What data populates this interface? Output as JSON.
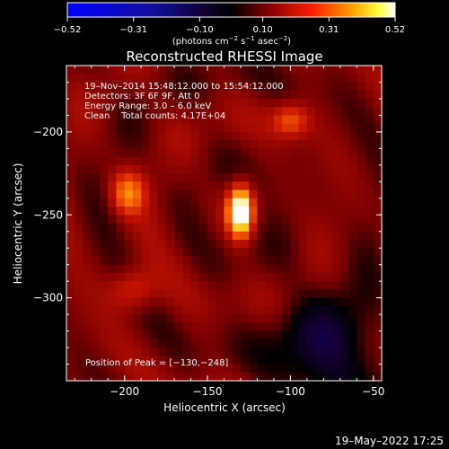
{
  "colorbar": {
    "tick_labels": [
      "−0.52",
      "−0.31",
      "−0.10",
      "0.10",
      "0.31",
      "0.52"
    ],
    "ticks": [
      -0.52,
      -0.31,
      -0.1,
      0.1,
      0.31,
      0.52
    ],
    "range": [
      -0.52,
      0.52
    ],
    "units_base": "(photons cm",
    "units_sup1": "−2",
    "units_mid": " s",
    "units_sup2": "−1",
    "units_mid2": " asec",
    "units_sup3": "−2",
    "units_end": ")"
  },
  "chart_data": {
    "type": "heatmap",
    "title": "Reconstructed RHESSI Image",
    "xlabel": "Heliocentric X (arcsec)",
    "ylabel": "Heliocentric Y (arcsec)",
    "xlim": [
      -235,
      -45
    ],
    "ylim": [
      -350,
      -160
    ],
    "xticks": [
      -200,
      -150,
      -100,
      -50
    ],
    "xtick_labels": [
      "−200",
      "−150",
      "−100",
      "−50"
    ],
    "yticks": [
      -200,
      -250,
      -300
    ],
    "ytick_labels": [
      "−200",
      "−250",
      "−300"
    ],
    "colormap": "RHESSI heat (blue-black-red-yellow-white)",
    "sources": [
      {
        "x": -130,
        "y": -248,
        "peak": 0.52,
        "sx": 5,
        "sy": 10
      },
      {
        "x": -198,
        "y": -237,
        "peak": 0.22,
        "sx": 7,
        "sy": 9
      },
      {
        "x": -100,
        "y": -193,
        "peak": 0.17,
        "sx": 8,
        "sy": 7
      },
      {
        "x": -195,
        "y": -295,
        "peak": 0.14,
        "sx": 10,
        "sy": 9
      }
    ],
    "peak_position": [
      -130,
      -248
    ]
  },
  "info": {
    "line1": "19–Nov–2014 15:48:12.000 to 15:54:12.000",
    "line2": "Detectors: 3F 6F 9F, Att 0",
    "line3": "Energy Range: 3.0 – 6.0 keV",
    "line4": "Clean    Total counts: 4.17E+04",
    "peak_label": "Position of Peak = [−130,−248]"
  },
  "footer": "19–May–2022 17:25"
}
